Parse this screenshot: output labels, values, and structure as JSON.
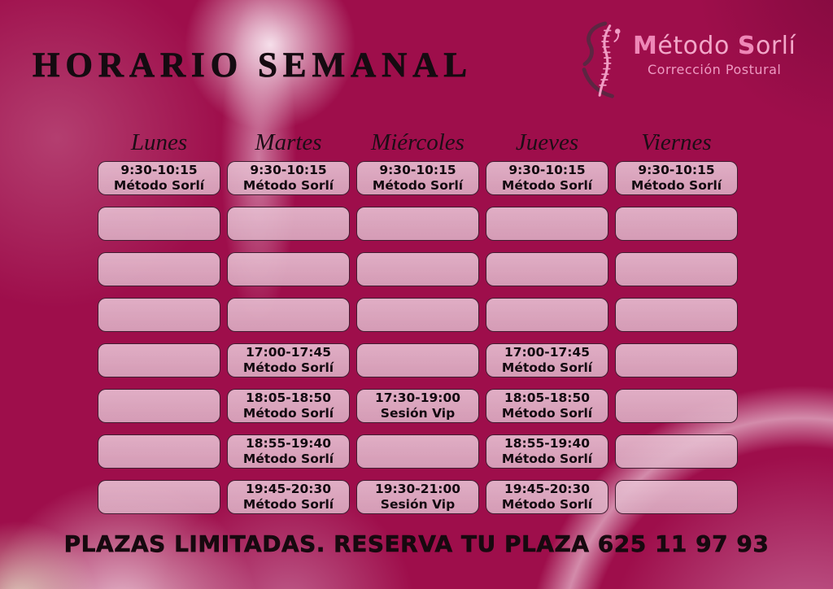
{
  "header": {
    "title": "HORARIO SEMANAL"
  },
  "logo": {
    "parts": [
      {
        "t": "M"
      },
      {
        "t": "étodo "
      },
      {
        "t": "S"
      },
      {
        "t": "orlí"
      }
    ],
    "tagline": "Corrección Postural",
    "icon": "spine-icon"
  },
  "schedule": {
    "days": [
      "Lunes",
      "Martes",
      "Miércoles",
      "Jueves",
      "Viernes"
    ],
    "grid": [
      [
        {
          "time": "9:30-10:15",
          "label": "Método Sorlí"
        },
        {
          "time": "9:30-10:15",
          "label": "Método Sorlí"
        },
        {
          "time": "9:30-10:15",
          "label": "Método Sorlí"
        },
        {
          "time": "9:30-10:15",
          "label": "Método Sorlí"
        },
        {
          "time": "9:30-10:15",
          "label": "Método Sorlí"
        }
      ],
      [
        null,
        null,
        null,
        null,
        null
      ],
      [
        null,
        null,
        null,
        null,
        null
      ],
      [
        null,
        null,
        null,
        null,
        null
      ],
      [
        null,
        {
          "time": "17:00-17:45",
          "label": "Método Sorlí"
        },
        null,
        {
          "time": "17:00-17:45",
          "label": "Método Sorlí"
        },
        null
      ],
      [
        null,
        {
          "time": "18:05-18:50",
          "label": "Método Sorlí"
        },
        {
          "time": "17:30-19:00",
          "label": "Sesión Vip"
        },
        {
          "time": "18:05-18:50",
          "label": "Método Sorlí"
        },
        null
      ],
      [
        null,
        {
          "time": "18:55-19:40",
          "label": "Método Sorlí"
        },
        null,
        {
          "time": "18:55-19:40",
          "label": "Método Sorlí"
        },
        null
      ],
      [
        null,
        {
          "time": "19:45-20:30",
          "label": "Método Sorlí"
        },
        {
          "time": "19:30-21:00",
          "label": "Sesión Vip"
        },
        {
          "time": "19:45-20:30",
          "label": "Método Sorlí"
        },
        null
      ]
    ]
  },
  "footer": {
    "text": "PLAZAS LIMITADAS. RESERVA TU PLAZA 625 11 97 93"
  },
  "colors": {
    "background": "#9e0e4b",
    "cell_fill": "#e4b5cb",
    "cell_border": "#300d21",
    "brand_pink": "#f2a7c9",
    "brand_pink_bold": "#ee87b7",
    "text_dark": "#150b11"
  }
}
